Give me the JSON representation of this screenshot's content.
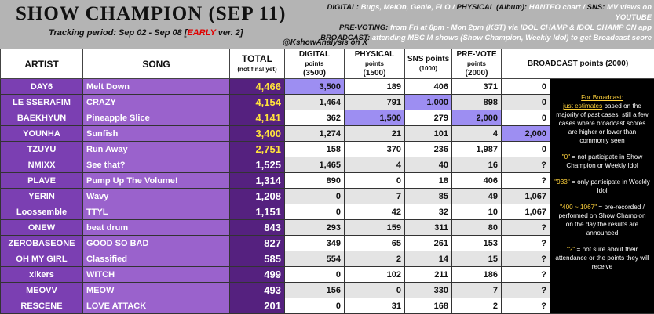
{
  "header": {
    "title": "SHOW CHAMPION (SEP 11)",
    "tracking": {
      "before": "Tracking period: Sep 02 - Sep 08 [",
      "early": "EARLY",
      "after": " ver. 2]"
    },
    "info": [
      [
        {
          "label": "DIGITAL:",
          "text": "Bugs, MelOn, Genie, FLO /"
        },
        {
          "label": "PHYSICAL (Album):",
          "text": "HANTEO chart /"
        },
        {
          "label": "SNS:",
          "text": "MV views on YOUTUBE"
        }
      ],
      [
        {
          "label": "PRE-VOTING:",
          "text": "from Fri at 8pm - Mon 2pm (KST) via IDOL CHAMP & IDOL CHAMP CN app"
        }
      ],
      [
        {
          "label": "BROADCAST:",
          "text": "attending MBC M shows (Show Champion, Weekly Idol) to get Broadcast score"
        }
      ]
    ],
    "credit": "@KshowAnalysis on X"
  },
  "table": {
    "columns": [
      [
        "ARTIST"
      ],
      [
        "SONG"
      ],
      [
        "TOTAL",
        "(not final yet)"
      ],
      [
        "DIGITAL",
        "points",
        "(3500)"
      ],
      [
        "PHYSICAL",
        "points",
        "(1500)"
      ],
      [
        "SNS points",
        "(1000)"
      ],
      [
        "PRE-VOTE",
        "points",
        "(2000)"
      ],
      [
        "BROADCAST points (2000)"
      ]
    ],
    "rows": [
      [
        "DAY6",
        "Melt Down",
        "4,466",
        "3,500",
        "189",
        "406",
        "371",
        "0"
      ],
      [
        "LE SSERAFIM",
        "CRAZY",
        "4,154",
        "1,464",
        "791",
        "1,000",
        "898",
        "0"
      ],
      [
        "BAEKHYUN",
        "Pineapple Slice",
        "4,141",
        "362",
        "1,500",
        "279",
        "2,000",
        "0"
      ],
      [
        "YOUNHA",
        "Sunfish",
        "3,400",
        "1,274",
        "21",
        "101",
        "4",
        "2,000"
      ],
      [
        "TZUYU",
        "Run Away",
        "2,751",
        "158",
        "370",
        "236",
        "1,987",
        "0"
      ],
      [
        "NMIXX",
        "See that?",
        "1,525",
        "1,465",
        "4",
        "40",
        "16",
        "?"
      ],
      [
        "PLAVE",
        "Pump Up The Volume!",
        "1,314",
        "890",
        "0",
        "18",
        "406",
        "?"
      ],
      [
        "YERIN",
        "Wavy",
        "1,208",
        "0",
        "7",
        "85",
        "49",
        "1,067"
      ],
      [
        "Loossemble",
        "TTYL",
        "1,151",
        "0",
        "42",
        "32",
        "10",
        "1,067"
      ],
      [
        "ONEW",
        "beat drum",
        "843",
        "293",
        "159",
        "311",
        "80",
        "?"
      ],
      [
        "ZEROBASEONE",
        "GOOD SO BAD",
        "827",
        "349",
        "65",
        "261",
        "153",
        "?"
      ],
      [
        "OH MY GIRL",
        "Classified",
        "585",
        "554",
        "2",
        "14",
        "15",
        "?"
      ],
      [
        "xikers",
        "WITCH",
        "499",
        "0",
        "102",
        "211",
        "186",
        "?"
      ],
      [
        "MEOVV",
        "MEOW",
        "493",
        "156",
        "0",
        "330",
        "7",
        "?"
      ],
      [
        "RESCENE",
        "LOVE ATTACK",
        "201",
        "0",
        "31",
        "168",
        "2",
        "?"
      ]
    ]
  },
  "notes": {
    "heading": "For Broadcast:",
    "intro": {
      "key": "just estimates",
      "text": " based on the majority of past cases, still a few cases where broadcast scores are higher or lower than commonly seen"
    },
    "items": [
      {
        "key": "\"0\"",
        "text": " = not participate in Show Champion or Weekly Idol"
      },
      {
        "key": "\"933\"",
        "text": " = only participate in Weekly Idol"
      },
      {
        "key": "\"400 ~ 1067\"",
        "text": " = pre-recorded / performed on Show Champion on the day the results are announced"
      },
      {
        "key": "\"?\"",
        "text": " = not sure about their attendance or the points they will receive"
      }
    ]
  }
}
